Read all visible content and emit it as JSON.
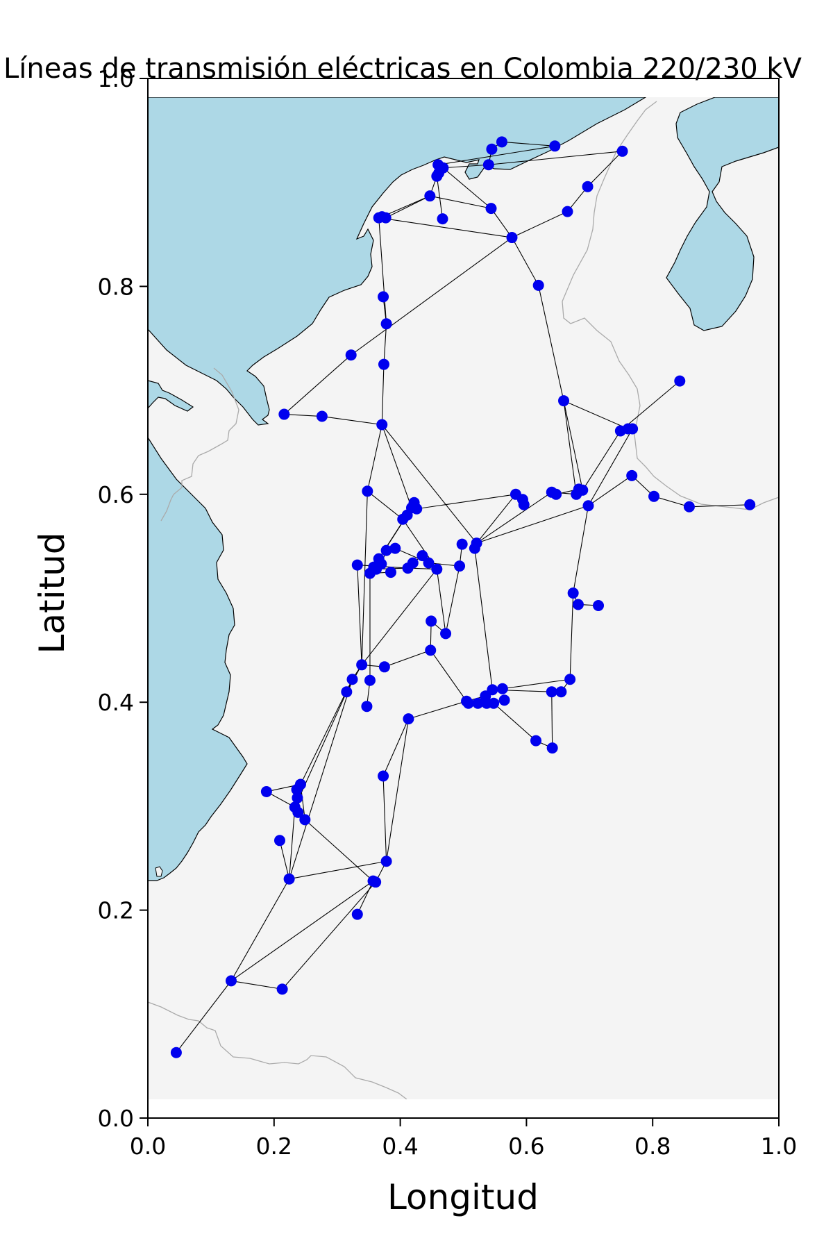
{
  "chart_data": {
    "type": "scatter",
    "title": "Líneas de transmisión eléctricas en Colombia 220/230 kV",
    "xlabel": "Longitud",
    "ylabel": "Latitud",
    "xlim": [
      0.0,
      1.0
    ],
    "ylim": [
      0.0,
      1.0
    ],
    "xticks": [
      "0.0",
      "0.2",
      "0.4",
      "0.6",
      "0.8",
      "1.0"
    ],
    "yticks": [
      "0.0",
      "0.2",
      "0.4",
      "0.6",
      "0.8",
      "1.0"
    ],
    "grid": false,
    "colors": {
      "node": "#0000ee",
      "edge": "#000000",
      "sea": "#add8e6",
      "land": "#f4f4f4",
      "border": "#aaaaaa"
    },
    "nodes": [
      [
        0.045,
        0.063
      ],
      [
        0.132,
        0.132
      ],
      [
        0.213,
        0.124
      ],
      [
        0.224,
        0.23
      ],
      [
        0.332,
        0.196
      ],
      [
        0.357,
        0.228
      ],
      [
        0.361,
        0.227
      ],
      [
        0.378,
        0.247
      ],
      [
        0.249,
        0.287
      ],
      [
        0.233,
        0.299
      ],
      [
        0.238,
        0.294
      ],
      [
        0.237,
        0.308
      ],
      [
        0.236,
        0.316
      ],
      [
        0.242,
        0.321
      ],
      [
        0.188,
        0.314
      ],
      [
        0.209,
        0.267
      ],
      [
        0.373,
        0.329
      ],
      [
        0.413,
        0.384
      ],
      [
        0.315,
        0.41
      ],
      [
        0.347,
        0.396
      ],
      [
        0.324,
        0.422
      ],
      [
        0.339,
        0.436
      ],
      [
        0.352,
        0.421
      ],
      [
        0.375,
        0.434
      ],
      [
        0.448,
        0.45
      ],
      [
        0.449,
        0.478
      ],
      [
        0.472,
        0.466
      ],
      [
        0.505,
        0.401
      ],
      [
        0.508,
        0.399
      ],
      [
        0.523,
        0.399
      ],
      [
        0.535,
        0.406
      ],
      [
        0.537,
        0.399
      ],
      [
        0.546,
        0.412
      ],
      [
        0.548,
        0.399
      ],
      [
        0.562,
        0.413
      ],
      [
        0.565,
        0.402
      ],
      [
        0.615,
        0.363
      ],
      [
        0.641,
        0.356
      ],
      [
        0.64,
        0.41
      ],
      [
        0.655,
        0.41
      ],
      [
        0.669,
        0.422
      ],
      [
        0.674,
        0.505
      ],
      [
        0.682,
        0.494
      ],
      [
        0.714,
        0.493
      ],
      [
        0.332,
        0.532
      ],
      [
        0.352,
        0.524
      ],
      [
        0.358,
        0.53
      ],
      [
        0.366,
        0.538
      ],
      [
        0.362,
        0.528
      ],
      [
        0.37,
        0.533
      ],
      [
        0.378,
        0.546
      ],
      [
        0.385,
        0.525
      ],
      [
        0.392,
        0.548
      ],
      [
        0.412,
        0.529
      ],
      [
        0.42,
        0.534
      ],
      [
        0.435,
        0.541
      ],
      [
        0.445,
        0.534
      ],
      [
        0.458,
        0.528
      ],
      [
        0.494,
        0.531
      ],
      [
        0.498,
        0.552
      ],
      [
        0.518,
        0.548
      ],
      [
        0.521,
        0.553
      ],
      [
        0.404,
        0.576
      ],
      [
        0.411,
        0.58
      ],
      [
        0.418,
        0.587
      ],
      [
        0.422,
        0.592
      ],
      [
        0.426,
        0.586
      ],
      [
        0.348,
        0.603
      ],
      [
        0.583,
        0.6
      ],
      [
        0.594,
        0.595
      ],
      [
        0.596,
        0.59
      ],
      [
        0.64,
        0.602
      ],
      [
        0.647,
        0.6
      ],
      [
        0.679,
        0.6
      ],
      [
        0.683,
        0.605
      ],
      [
        0.689,
        0.604
      ],
      [
        0.698,
        0.589
      ],
      [
        0.767,
        0.618
      ],
      [
        0.802,
        0.598
      ],
      [
        0.858,
        0.588
      ],
      [
        0.954,
        0.59
      ],
      [
        0.659,
        0.69
      ],
      [
        0.749,
        0.661
      ],
      [
        0.761,
        0.663
      ],
      [
        0.768,
        0.663
      ],
      [
        0.843,
        0.709
      ],
      [
        0.216,
        0.677
      ],
      [
        0.276,
        0.675
      ],
      [
        0.371,
        0.667
      ],
      [
        0.322,
        0.734
      ],
      [
        0.374,
        0.725
      ],
      [
        0.378,
        0.764
      ],
      [
        0.373,
        0.79
      ],
      [
        0.619,
        0.801
      ],
      [
        0.577,
        0.847
      ],
      [
        0.665,
        0.872
      ],
      [
        0.697,
        0.896
      ],
      [
        0.752,
        0.93
      ],
      [
        0.544,
        0.875
      ],
      [
        0.467,
        0.865
      ],
      [
        0.377,
        0.866
      ],
      [
        0.366,
        0.866
      ],
      [
        0.371,
        0.867
      ],
      [
        0.447,
        0.887
      ],
      [
        0.458,
        0.906
      ],
      [
        0.461,
        0.909
      ],
      [
        0.468,
        0.914
      ],
      [
        0.54,
        0.917
      ],
      [
        0.545,
        0.932
      ],
      [
        0.561,
        0.939
      ],
      [
        0.645,
        0.935
      ],
      [
        0.46,
        0.917
      ]
    ],
    "edges": [
      [
        0,
        1
      ],
      [
        1,
        2
      ],
      [
        1,
        3
      ],
      [
        1,
        5
      ],
      [
        2,
        6
      ],
      [
        3,
        9
      ],
      [
        3,
        7
      ],
      [
        4,
        5
      ],
      [
        5,
        8
      ],
      [
        8,
        13
      ],
      [
        9,
        14
      ],
      [
        10,
        13
      ],
      [
        14,
        13
      ],
      [
        3,
        15
      ],
      [
        3,
        20
      ],
      [
        9,
        20
      ],
      [
        13,
        20
      ],
      [
        6,
        7
      ],
      [
        7,
        17
      ],
      [
        16,
        7
      ],
      [
        16,
        17
      ],
      [
        17,
        27
      ],
      [
        18,
        20
      ],
      [
        18,
        21
      ],
      [
        20,
        21
      ],
      [
        21,
        44
      ],
      [
        21,
        67
      ],
      [
        21,
        57
      ],
      [
        21,
        23
      ],
      [
        23,
        24
      ],
      [
        24,
        25
      ],
      [
        24,
        27
      ],
      [
        25,
        26
      ],
      [
        26,
        58
      ],
      [
        26,
        57
      ],
      [
        27,
        30
      ],
      [
        28,
        31
      ],
      [
        29,
        35
      ],
      [
        30,
        32
      ],
      [
        32,
        38
      ],
      [
        33,
        36
      ],
      [
        34,
        40
      ],
      [
        37,
        38
      ],
      [
        37,
        36
      ],
      [
        38,
        39
      ],
      [
        39,
        40
      ],
      [
        40,
        41
      ],
      [
        41,
        42
      ],
      [
        42,
        43
      ],
      [
        41,
        76
      ],
      [
        19,
        22
      ],
      [
        22,
        45
      ],
      [
        44,
        53
      ],
      [
        45,
        51
      ],
      [
        48,
        53
      ],
      [
        49,
        50
      ],
      [
        50,
        52
      ],
      [
        52,
        56
      ],
      [
        53,
        57
      ],
      [
        54,
        55
      ],
      [
        55,
        56
      ],
      [
        56,
        58
      ],
      [
        57,
        62
      ],
      [
        58,
        59
      ],
      [
        60,
        32
      ],
      [
        60,
        61
      ],
      [
        61,
        68
      ],
      [
        61,
        71
      ],
      [
        61,
        76
      ],
      [
        61,
        88
      ],
      [
        47,
        64
      ],
      [
        46,
        63
      ],
      [
        62,
        67
      ],
      [
        66,
        68
      ],
      [
        67,
        88
      ],
      [
        68,
        69
      ],
      [
        69,
        70
      ],
      [
        71,
        73
      ],
      [
        72,
        74
      ],
      [
        74,
        75
      ],
      [
        75,
        81
      ],
      [
        75,
        82
      ],
      [
        73,
        81
      ],
      [
        76,
        77
      ],
      [
        77,
        78
      ],
      [
        78,
        79
      ],
      [
        79,
        80
      ],
      [
        81,
        83
      ],
      [
        81,
        93
      ],
      [
        82,
        85
      ],
      [
        84,
        76
      ],
      [
        86,
        87
      ],
      [
        86,
        89
      ],
      [
        87,
        88
      ],
      [
        88,
        90
      ],
      [
        88,
        64
      ],
      [
        90,
        91
      ],
      [
        91,
        92
      ],
      [
        91,
        101
      ],
      [
        89,
        94
      ],
      [
        93,
        94
      ],
      [
        94,
        95
      ],
      [
        95,
        96
      ],
      [
        96,
        97
      ],
      [
        97,
        107
      ],
      [
        94,
        98
      ],
      [
        98,
        103
      ],
      [
        98,
        106
      ],
      [
        101,
        94
      ],
      [
        103,
        100
      ],
      [
        103,
        104
      ],
      [
        104,
        105
      ],
      [
        105,
        113
      ],
      [
        106,
        107
      ],
      [
        107,
        108
      ],
      [
        108,
        109
      ],
      [
        109,
        110
      ],
      [
        110,
        111
      ],
      [
        111,
        106
      ],
      [
        99,
        104
      ],
      [
        102,
        103
      ]
    ]
  },
  "map_labels": []
}
